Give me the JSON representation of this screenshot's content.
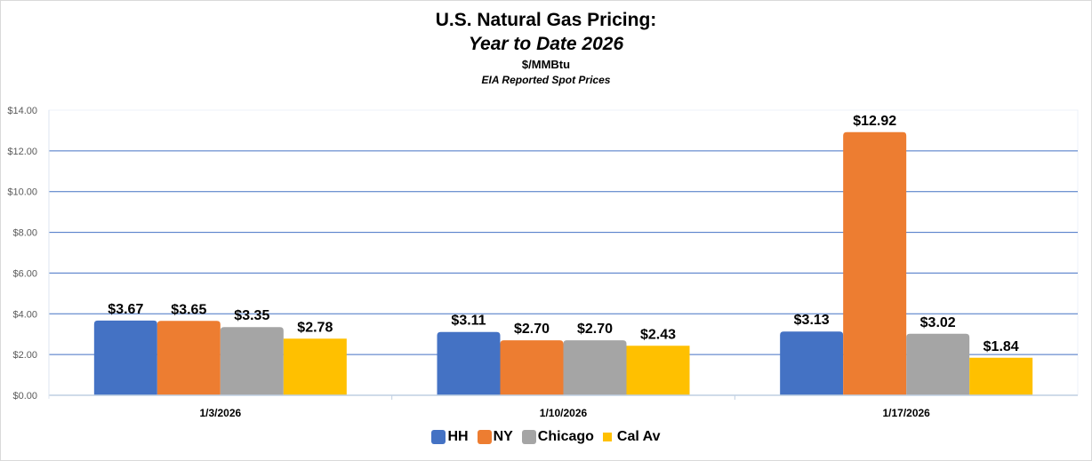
{
  "titles": {
    "title": "U.S. Natural Gas Pricing:",
    "subtitle": "Year to Date 2026",
    "units": "$/MMBtu",
    "source": "EIA Reported Spot Prices"
  },
  "chart_data": {
    "type": "bar",
    "title": "U.S. Natural Gas Pricing: Year to Date 2026",
    "subtitle": "$/MMBtu — EIA Reported Spot Prices",
    "xlabel": "",
    "ylabel": "",
    "ylim": [
      0,
      14
    ],
    "ytick_step": 2,
    "ytick_labels": [
      "$0.00",
      "$2.00",
      "$4.00",
      "$6.00",
      "$8.00",
      "$10.00",
      "$12.00",
      "$14.00"
    ],
    "grid": true,
    "legend_position": "bottom",
    "categories": [
      "1/3/2026",
      "1/10/2026",
      "1/17/2026"
    ],
    "series": [
      {
        "name": "HH",
        "color": "#4472C4",
        "values": [
          3.67,
          3.11,
          3.13
        ],
        "labels": [
          "$3.67",
          "$3.11",
          "$3.13"
        ]
      },
      {
        "name": "NY",
        "color": "#ED7D31",
        "values": [
          3.65,
          2.7,
          12.92
        ],
        "labels": [
          "$3.65",
          "$2.70",
          "$12.92"
        ]
      },
      {
        "name": "Chicago",
        "color": "#A5A5A5",
        "values": [
          3.35,
          2.7,
          3.02
        ],
        "labels": [
          "$3.35",
          "$2.70",
          "$3.02"
        ]
      },
      {
        "name": "Cal Av",
        "color": "#FFC000",
        "values": [
          2.78,
          2.43,
          1.84
        ],
        "labels": [
          "$2.78",
          "$2.43",
          "$1.84"
        ]
      }
    ]
  },
  "colors": {
    "gridline": "#4472C4",
    "axis": "#BFCFE2"
  }
}
